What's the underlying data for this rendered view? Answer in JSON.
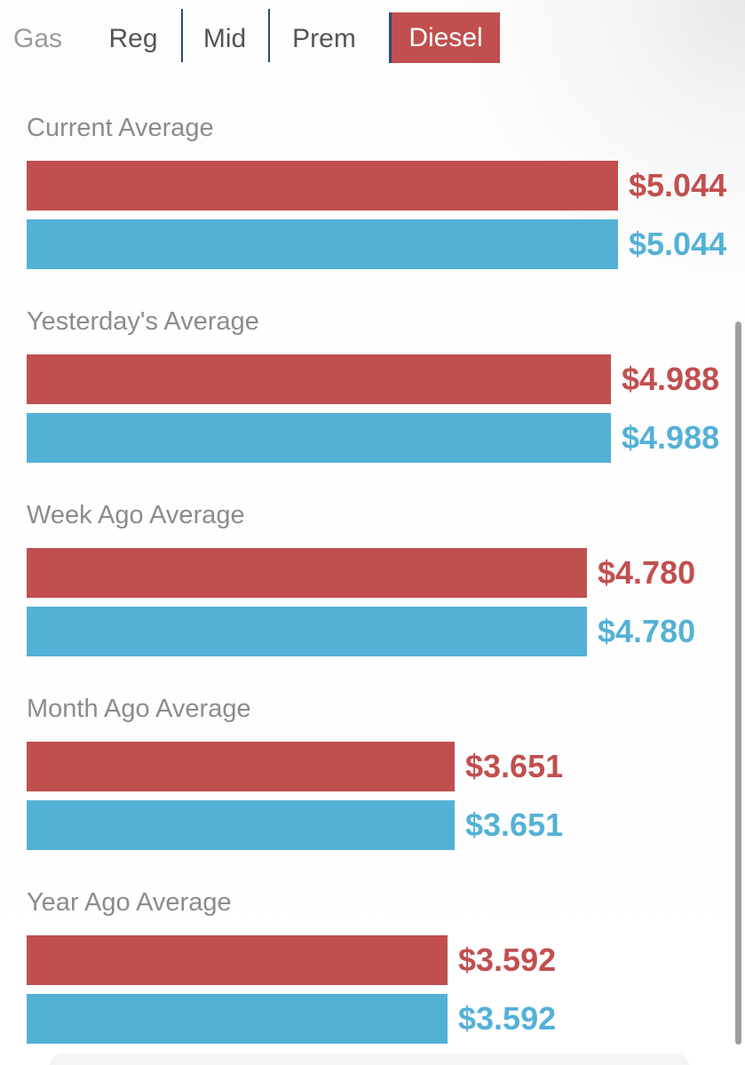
{
  "header": {
    "context_label": "Gas",
    "tabs": [
      {
        "label": "Reg",
        "selected": false
      },
      {
        "label": "Mid",
        "selected": false
      },
      {
        "label": "Prem",
        "selected": false
      },
      {
        "label": "Diesel",
        "selected": true
      }
    ]
  },
  "colors": {
    "red": "#c14f4f",
    "blue": "#54b1d6",
    "navy": "#2b4a73",
    "label-gray": "#8c8c8c",
    "gas-gray": "#9b9b9b",
    "tab-gray": "#555555",
    "white": "#ffffff"
  },
  "sections": [
    {
      "label": "Current Average",
      "value": 5.044,
      "price": "$5.044"
    },
    {
      "label": "Yesterday's Average",
      "value": 4.988,
      "price": "$4.988"
    },
    {
      "label": "Week Ago Average",
      "value": 4.78,
      "price": "$4.780"
    },
    {
      "label": "Month Ago Average",
      "value": 3.651,
      "price": "$3.651"
    },
    {
      "label": "Year Ago Average",
      "value": 3.592,
      "price": "$3.592"
    }
  ],
  "chart_data": {
    "type": "bar",
    "orientation": "horizontal",
    "categories": [
      "Current Average",
      "Yesterday's Average",
      "Week Ago Average",
      "Month Ago Average",
      "Year Ago Average"
    ],
    "series": [
      {
        "name": "red-series",
        "color": "#c14f4f",
        "values": [
          5.044,
          4.988,
          4.78,
          3.651,
          3.592
        ]
      },
      {
        "name": "blue-series",
        "color": "#54b1d6",
        "values": [
          5.044,
          4.988,
          4.78,
          3.651,
          3.592
        ]
      }
    ],
    "value_labels": [
      "$5.044",
      "$4.988",
      "$4.780",
      "$3.651",
      "$3.592"
    ],
    "xlim": [
      0,
      5.3
    ],
    "grid": false,
    "legend": false,
    "selected_fuel_tab": "Diesel"
  }
}
